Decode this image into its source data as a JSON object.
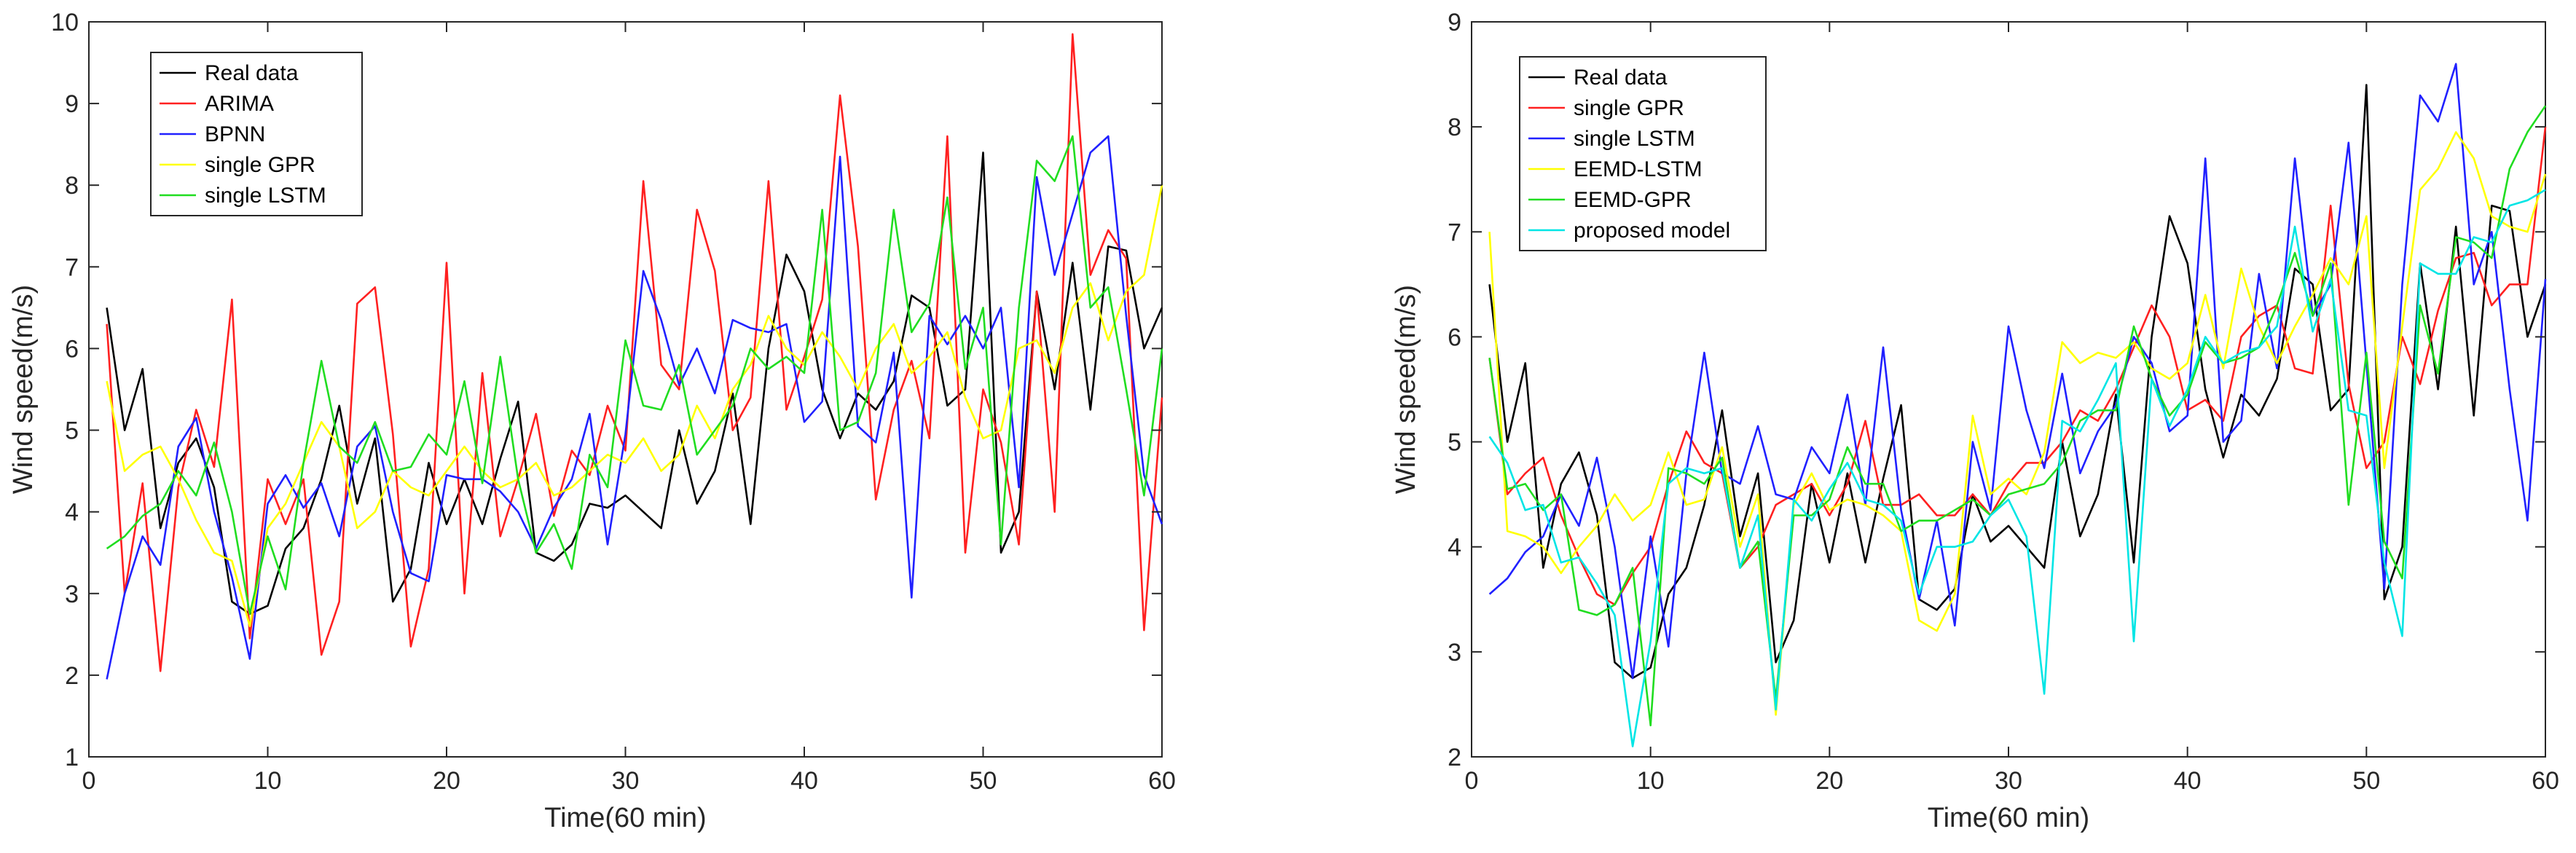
{
  "chart_data": [
    {
      "type": "line",
      "title": "",
      "xlabel": "Time(60 min)",
      "ylabel": "Wind speed(m/s)",
      "xlim": [
        0,
        60
      ],
      "ylim": [
        1,
        10
      ],
      "xticks": [
        0,
        10,
        20,
        30,
        40,
        50,
        60
      ],
      "yticks": [
        1,
        2,
        3,
        4,
        5,
        6,
        7,
        8,
        9,
        10
      ],
      "grid": false,
      "legend_position": "top-left",
      "x": [
        1,
        2,
        3,
        4,
        5,
        6,
        7,
        8,
        9,
        10,
        11,
        12,
        13,
        14,
        15,
        16,
        17,
        18,
        19,
        20,
        21,
        22,
        23,
        24,
        25,
        26,
        27,
        28,
        29,
        30,
        31,
        32,
        33,
        34,
        35,
        36,
        37,
        38,
        39,
        40,
        41,
        42,
        43,
        44,
        45,
        46,
        47,
        48,
        49,
        50,
        51,
        52,
        53,
        54,
        55,
        56,
        57,
        58,
        59,
        60
      ],
      "series": [
        {
          "name": "Real data",
          "color": "#000000",
          "values": [
            6.5,
            5.0,
            5.75,
            3.8,
            4.6,
            4.9,
            4.3,
            2.9,
            2.75,
            2.85,
            3.55,
            3.8,
            4.4,
            5.3,
            4.1,
            4.9,
            2.9,
            3.3,
            4.6,
            3.85,
            4.4,
            3.85,
            4.65,
            5.35,
            3.5,
            3.4,
            3.6,
            4.1,
            4.05,
            4.2,
            4.0,
            3.8,
            5.0,
            4.1,
            4.5,
            5.45,
            3.85,
            6.0,
            7.15,
            6.7,
            5.5,
            4.9,
            5.45,
            5.25,
            5.6,
            6.65,
            6.5,
            5.3,
            5.5,
            8.4,
            3.5,
            4.0,
            6.7,
            5.5,
            7.05,
            5.25,
            7.25,
            7.2,
            6.0,
            6.5
          ]
        },
        {
          "name": "ARIMA",
          "color": "#ff2020",
          "values": [
            6.3,
            3.0,
            4.35,
            2.05,
            4.3,
            5.25,
            4.55,
            6.6,
            2.45,
            4.4,
            3.85,
            4.4,
            2.25,
            2.9,
            6.55,
            6.75,
            4.95,
            2.35,
            3.3,
            7.05,
            3.0,
            5.7,
            3.7,
            4.4,
            5.2,
            3.95,
            4.75,
            4.45,
            5.3,
            4.75,
            8.05,
            5.8,
            5.5,
            7.7,
            6.95,
            5.0,
            5.4,
            8.05,
            5.25,
            5.9,
            6.6,
            9.1,
            7.25,
            4.15,
            5.25,
            5.85,
            4.9,
            8.6,
            3.5,
            5.5,
            4.85,
            3.6,
            6.7,
            4.0,
            9.85,
            6.9,
            7.45,
            7.1,
            2.55,
            5.4
          ]
        },
        {
          "name": "BPNN",
          "color": "#2020ff",
          "values": [
            1.95,
            3.0,
            3.7,
            3.35,
            4.8,
            5.15,
            4.0,
            3.2,
            2.2,
            4.1,
            4.45,
            4.05,
            4.35,
            3.7,
            4.8,
            5.05,
            4.0,
            3.25,
            3.15,
            4.45,
            4.4,
            4.4,
            4.25,
            4.0,
            3.55,
            4.05,
            4.4,
            5.2,
            3.6,
            4.95,
            6.95,
            6.35,
            5.55,
            6.0,
            5.45,
            6.35,
            6.25,
            6.2,
            6.3,
            5.1,
            5.35,
            8.35,
            5.05,
            4.85,
            5.95,
            2.95,
            6.4,
            6.05,
            6.4,
            6.0,
            6.5,
            4.3,
            8.1,
            6.9,
            7.65,
            8.4,
            8.6,
            6.4,
            4.45,
            3.85
          ]
        },
        {
          "name": "single GPR",
          "color": "#ffff00",
          "values": [
            5.6,
            4.5,
            4.7,
            4.8,
            4.4,
            3.9,
            3.5,
            3.4,
            2.6,
            3.8,
            4.1,
            4.6,
            5.1,
            4.8,
            3.8,
            4.0,
            4.5,
            4.3,
            4.2,
            4.5,
            4.8,
            4.5,
            4.3,
            4.4,
            4.6,
            4.2,
            4.3,
            4.5,
            4.7,
            4.6,
            4.9,
            4.5,
            4.7,
            5.3,
            4.9,
            5.5,
            5.8,
            6.4,
            6.0,
            5.8,
            6.2,
            5.9,
            5.5,
            6.0,
            6.3,
            5.7,
            5.9,
            6.2,
            5.4,
            4.9,
            5.0,
            6.0,
            6.1,
            5.7,
            6.5,
            6.8,
            6.1,
            6.7,
            6.9,
            8.0
          ]
        },
        {
          "name": "single LSTM",
          "color": "#20dd20",
          "values": [
            3.55,
            3.7,
            3.95,
            4.1,
            4.5,
            4.2,
            4.85,
            4.0,
            2.75,
            3.7,
            3.05,
            4.6,
            5.85,
            4.8,
            4.6,
            5.1,
            4.5,
            4.55,
            4.95,
            4.7,
            5.6,
            4.35,
            5.9,
            4.4,
            3.5,
            3.85,
            3.3,
            4.7,
            4.3,
            6.1,
            5.3,
            5.25,
            5.8,
            4.7,
            5.0,
            5.3,
            6.0,
            5.75,
            5.9,
            5.7,
            7.7,
            5.0,
            5.1,
            5.7,
            7.7,
            6.2,
            6.55,
            7.85,
            5.75,
            6.5,
            3.6,
            6.5,
            8.3,
            8.05,
            8.6,
            6.5,
            6.75,
            5.5,
            4.2,
            6.0
          ]
        }
      ],
      "legend": [
        "Real data",
        "ARIMA",
        "BPNN",
        "single GPR",
        "single LSTM"
      ]
    },
    {
      "type": "line",
      "title": "",
      "xlabel": "Time(60 min)",
      "ylabel": "Wind speed(m/s)",
      "xlim": [
        0,
        60
      ],
      "ylim": [
        2,
        9
      ],
      "xticks": [
        0,
        10,
        20,
        30,
        40,
        50,
        60
      ],
      "yticks": [
        2,
        3,
        4,
        5,
        6,
        7,
        8,
        9
      ],
      "grid": false,
      "legend_position": "top-left",
      "x": [
        1,
        2,
        3,
        4,
        5,
        6,
        7,
        8,
        9,
        10,
        11,
        12,
        13,
        14,
        15,
        16,
        17,
        18,
        19,
        20,
        21,
        22,
        23,
        24,
        25,
        26,
        27,
        28,
        29,
        30,
        31,
        32,
        33,
        34,
        35,
        36,
        37,
        38,
        39,
        40,
        41,
        42,
        43,
        44,
        45,
        46,
        47,
        48,
        49,
        50,
        51,
        52,
        53,
        54,
        55,
        56,
        57,
        58,
        59,
        60
      ],
      "series": [
        {
          "name": "Real data",
          "color": "#000000",
          "values": [
            6.5,
            5.0,
            5.75,
            3.8,
            4.6,
            4.9,
            4.3,
            2.9,
            2.75,
            2.85,
            3.55,
            3.8,
            4.4,
            5.3,
            4.1,
            4.7,
            2.9,
            3.3,
            4.6,
            3.85,
            4.7,
            3.85,
            4.65,
            5.35,
            3.5,
            3.4,
            3.6,
            4.5,
            4.05,
            4.2,
            4.0,
            3.8,
            5.0,
            4.1,
            4.5,
            5.45,
            3.85,
            6.0,
            7.15,
            6.7,
            5.5,
            4.85,
            5.45,
            5.25,
            5.6,
            6.65,
            6.5,
            5.3,
            5.5,
            8.4,
            3.5,
            4.0,
            6.7,
            5.5,
            7.05,
            5.25,
            7.25,
            7.2,
            6.0,
            6.5
          ]
        },
        {
          "name": "single GPR",
          "color": "#ff2020",
          "values": [
            5.8,
            4.5,
            4.7,
            4.85,
            4.3,
            3.9,
            3.55,
            3.45,
            3.75,
            4.0,
            4.6,
            5.1,
            4.8,
            4.7,
            3.8,
            4.0,
            4.4,
            4.5,
            4.6,
            4.3,
            4.6,
            5.2,
            4.4,
            4.4,
            4.5,
            4.3,
            4.3,
            4.5,
            4.3,
            4.6,
            4.8,
            4.8,
            5.0,
            5.3,
            5.2,
            5.5,
            5.9,
            6.3,
            6.0,
            5.3,
            5.4,
            5.2,
            6.0,
            6.2,
            6.3,
            5.7,
            5.65,
            7.25,
            5.55,
            4.75,
            5.0,
            6.0,
            5.55,
            6.25,
            6.75,
            6.8,
            6.3,
            6.5,
            6.5,
            8.0
          ]
        },
        {
          "name": "single LSTM",
          "color": "#2020ff",
          "values": [
            3.55,
            3.7,
            3.95,
            4.1,
            4.5,
            4.2,
            4.85,
            4.0,
            2.75,
            4.1,
            3.05,
            4.7,
            5.85,
            4.7,
            4.6,
            5.15,
            4.5,
            4.45,
            4.95,
            4.7,
            5.45,
            4.4,
            5.9,
            4.35,
            3.5,
            4.25,
            3.25,
            5.0,
            4.35,
            6.1,
            5.3,
            4.75,
            5.65,
            4.7,
            5.1,
            5.35,
            6.0,
            5.75,
            5.1,
            5.25,
            7.7,
            5.0,
            5.2,
            6.6,
            5.7,
            7.7,
            6.2,
            6.5,
            7.85,
            5.75,
            3.6,
            6.5,
            8.3,
            8.05,
            8.6,
            6.5,
            7.0,
            5.5,
            4.25,
            6.55
          ]
        },
        {
          "name": "EEMD-LSTM",
          "color": "#ffff00",
          "values": [
            7.0,
            4.15,
            4.1,
            4.0,
            3.75,
            4.0,
            4.2,
            4.5,
            4.25,
            4.4,
            4.9,
            4.4,
            4.45,
            4.95,
            4.0,
            4.5,
            2.4,
            4.4,
            4.7,
            4.35,
            4.45,
            4.4,
            4.3,
            4.15,
            3.3,
            3.2,
            3.55,
            5.25,
            4.5,
            4.65,
            4.5,
            4.9,
            5.95,
            5.75,
            5.85,
            5.8,
            5.95,
            5.7,
            5.6,
            5.75,
            6.4,
            5.7,
            6.65,
            6.1,
            5.75,
            6.1,
            6.4,
            6.75,
            6.5,
            7.15,
            4.75,
            6.1,
            7.4,
            7.6,
            7.95,
            7.7,
            7.15,
            7.05,
            7.0,
            7.55
          ]
        },
        {
          "name": "EEMD-GPR",
          "color": "#20dd20",
          "values": [
            5.8,
            4.55,
            4.6,
            4.35,
            4.5,
            3.4,
            3.35,
            3.45,
            3.8,
            2.3,
            4.75,
            4.7,
            4.6,
            4.85,
            3.8,
            4.05,
            2.55,
            4.3,
            4.3,
            4.45,
            4.95,
            4.6,
            4.6,
            4.15,
            4.25,
            4.25,
            4.35,
            4.45,
            4.3,
            4.5,
            4.55,
            4.6,
            4.8,
            5.2,
            5.3,
            5.3,
            6.1,
            5.6,
            5.25,
            5.45,
            5.95,
            5.75,
            5.8,
            5.9,
            6.3,
            6.8,
            6.2,
            6.7,
            4.4,
            5.85,
            4.05,
            3.7,
            6.3,
            5.65,
            6.95,
            6.9,
            6.75,
            7.6,
            7.95,
            8.2
          ]
        },
        {
          "name": "proposed model",
          "color": "#00e5e5",
          "values": [
            5.05,
            4.8,
            4.35,
            4.4,
            3.85,
            3.9,
            3.65,
            3.35,
            2.1,
            3.1,
            4.6,
            4.75,
            4.7,
            4.75,
            3.8,
            4.3,
            2.45,
            4.45,
            4.25,
            4.55,
            4.8,
            4.45,
            4.4,
            4.25,
            3.55,
            4.0,
            4.0,
            4.05,
            4.3,
            4.45,
            4.1,
            2.6,
            5.2,
            5.1,
            5.4,
            5.75,
            3.1,
            5.6,
            5.15,
            5.5,
            6.0,
            5.75,
            5.85,
            5.9,
            6.1,
            7.05,
            6.05,
            6.55,
            5.3,
            5.25,
            3.85,
            3.15,
            6.7,
            6.6,
            6.6,
            6.95,
            6.9,
            7.25,
            7.3,
            7.4
          ]
        }
      ],
      "legend": [
        "Real data",
        "single GPR",
        "single LSTM",
        "EEMD-LSTM",
        "EEMD-GPR",
        "proposed model"
      ]
    }
  ]
}
